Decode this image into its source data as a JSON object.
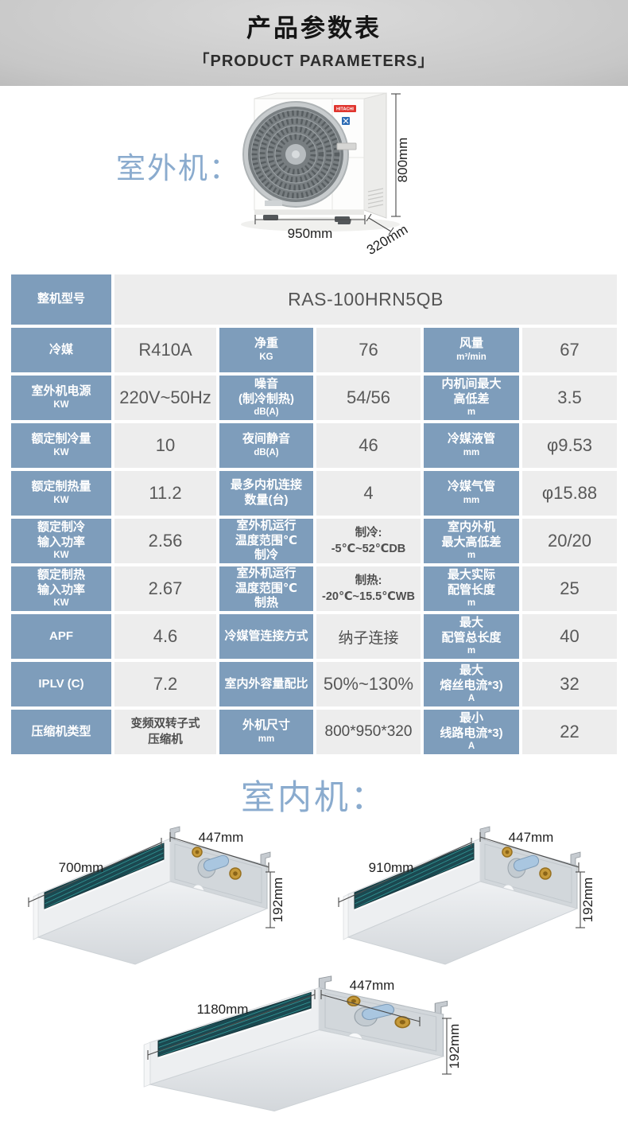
{
  "header": {
    "title": "产品参数表",
    "subtitle": "「PRODUCT PARAMETERS」"
  },
  "outdoor": {
    "section_label": "室外机：",
    "brand": "HITACHI",
    "dims": {
      "width": "950mm",
      "depth": "320mm",
      "height": "800mm"
    }
  },
  "table": {
    "model_label": "整机型号",
    "model_value": "RAS-100HRN5QB",
    "rows": [
      [
        {
          "h": {
            "lines": [
              "冷媒"
            ]
          },
          "v": {
            "lines": [
              "R410A"
            ],
            "cls": "lg"
          }
        },
        {
          "h": {
            "lines": [
              "净重"
            ],
            "sub": "KG"
          },
          "v": {
            "lines": [
              "76"
            ],
            "cls": "lg"
          }
        },
        {
          "h": {
            "lines": [
              "风量"
            ],
            "sub": "m³/min"
          },
          "v": {
            "lines": [
              "67"
            ],
            "cls": "lg"
          }
        }
      ],
      [
        {
          "h": {
            "lines": [
              "室外机电源"
            ],
            "sub": "KW"
          },
          "v": {
            "lines": [
              "220V~50Hz"
            ],
            "cls": "lg"
          }
        },
        {
          "h": {
            "lines": [
              "噪音",
              "(制冷制热)"
            ],
            "sub": "dB(A)"
          },
          "v": {
            "lines": [
              "54/56"
            ],
            "cls": "lg"
          }
        },
        {
          "h": {
            "lines": [
              "内机间最大",
              "高低差"
            ],
            "sub": "m"
          },
          "v": {
            "lines": [
              "3.5"
            ],
            "cls": "lg"
          }
        }
      ],
      [
        {
          "h": {
            "lines": [
              "额定制冷量"
            ],
            "sub": "KW"
          },
          "v": {
            "lines": [
              "10"
            ],
            "cls": "lg"
          }
        },
        {
          "h": {
            "lines": [
              "夜间静音"
            ],
            "sub": "dB(A)"
          },
          "v": {
            "lines": [
              "46"
            ],
            "cls": "lg"
          }
        },
        {
          "h": {
            "lines": [
              "冷媒液管"
            ],
            "sub": "mm"
          },
          "v": {
            "lines": [
              "φ9.53"
            ],
            "cls": "lg"
          }
        }
      ],
      [
        {
          "h": {
            "lines": [
              "额定制热量"
            ],
            "sub": "KW"
          },
          "v": {
            "lines": [
              "11.2"
            ],
            "cls": "lg"
          }
        },
        {
          "h": {
            "lines": [
              "最多内机连接",
              "数量(台)"
            ]
          },
          "v": {
            "lines": [
              "4"
            ],
            "cls": "lg"
          }
        },
        {
          "h": {
            "lines": [
              "冷媒气管"
            ],
            "sub": "mm"
          },
          "v": {
            "lines": [
              "φ15.88"
            ],
            "cls": "lg"
          }
        }
      ],
      [
        {
          "h": {
            "lines": [
              "额定制冷",
              "输入功率"
            ],
            "sub": "KW"
          },
          "v": {
            "lines": [
              "2.56"
            ],
            "cls": "lg"
          }
        },
        {
          "h": {
            "lines": [
              "室外机运行",
              "温度范围℃",
              "制冷"
            ]
          },
          "v": {
            "lines": [
              "制冷:",
              "-5℃~52℃DB"
            ],
            "cls": "sm"
          }
        },
        {
          "h": {
            "lines": [
              "室内外机",
              "最大高低差"
            ],
            "sub": "m"
          },
          "v": {
            "lines": [
              "20/20"
            ],
            "cls": "lg"
          }
        }
      ],
      [
        {
          "h": {
            "lines": [
              "额定制热",
              "输入功率"
            ],
            "sub": "KW"
          },
          "v": {
            "lines": [
              "2.67"
            ],
            "cls": "lg"
          }
        },
        {
          "h": {
            "lines": [
              "室外机运行",
              "温度范围℃",
              "制热"
            ]
          },
          "v": {
            "lines": [
              "制热:",
              "-20℃~15.5℃WB"
            ],
            "cls": "sm"
          }
        },
        {
          "h": {
            "lines": [
              "最大实际",
              "配管长度"
            ],
            "sub": "m"
          },
          "v": {
            "lines": [
              "25"
            ],
            "cls": "lg"
          }
        }
      ],
      [
        {
          "h": {
            "lines": [
              "APF"
            ]
          },
          "v": {
            "lines": [
              "4.6"
            ],
            "cls": "lg"
          }
        },
        {
          "h": {
            "lines": [
              "冷媒管连接方式"
            ]
          },
          "v": {
            "lines": [
              "纳子连接"
            ],
            "cls": "md"
          }
        },
        {
          "h": {
            "lines": [
              "最大",
              "配管总长度"
            ],
            "sub": "m"
          },
          "v": {
            "lines": [
              "40"
            ],
            "cls": "lg"
          }
        }
      ],
      [
        {
          "h": {
            "lines": [
              "IPLV (C)"
            ]
          },
          "v": {
            "lines": [
              "7.2"
            ],
            "cls": "lg"
          }
        },
        {
          "h": {
            "lines": [
              "室内外容量配比"
            ]
          },
          "v": {
            "lines": [
              "50%~130%"
            ],
            "cls": "lg"
          }
        },
        {
          "h": {
            "lines": [
              "最大",
              "熔丝电流*3)"
            ],
            "sub": "A"
          },
          "v": {
            "lines": [
              "32"
            ],
            "cls": "lg"
          }
        }
      ],
      [
        {
          "h": {
            "lines": [
              "压缩机类型"
            ]
          },
          "v": {
            "lines": [
              "变频双转子式",
              "压缩机"
            ],
            "cls": "sm"
          }
        },
        {
          "h": {
            "lines": [
              "外机尺寸"
            ],
            "sub": "mm"
          },
          "v": {
            "lines": [
              "800*950*320"
            ],
            "cls": "md"
          }
        },
        {
          "h": {
            "lines": [
              "最小",
              "线路电流*3)"
            ],
            "sub": "A"
          },
          "v": {
            "lines": [
              "22"
            ],
            "cls": "lg"
          }
        }
      ]
    ]
  },
  "indoor": {
    "section_label": "室内机：",
    "units": [
      {
        "length": "700mm",
        "depth": "447mm",
        "height": "192mm"
      },
      {
        "length": "910mm",
        "depth": "447mm",
        "height": "192mm"
      },
      {
        "length": "1180mm",
        "depth": "447mm",
        "height": "192mm"
      }
    ]
  },
  "colors": {
    "header_blue": "#7e9dbb",
    "cell_gray": "#ededed",
    "section_blue": "#8aabce",
    "grille_teal": "#1b4850",
    "hitachi_red": "#e0352e",
    "logo_blue": "#2c6cb5"
  }
}
